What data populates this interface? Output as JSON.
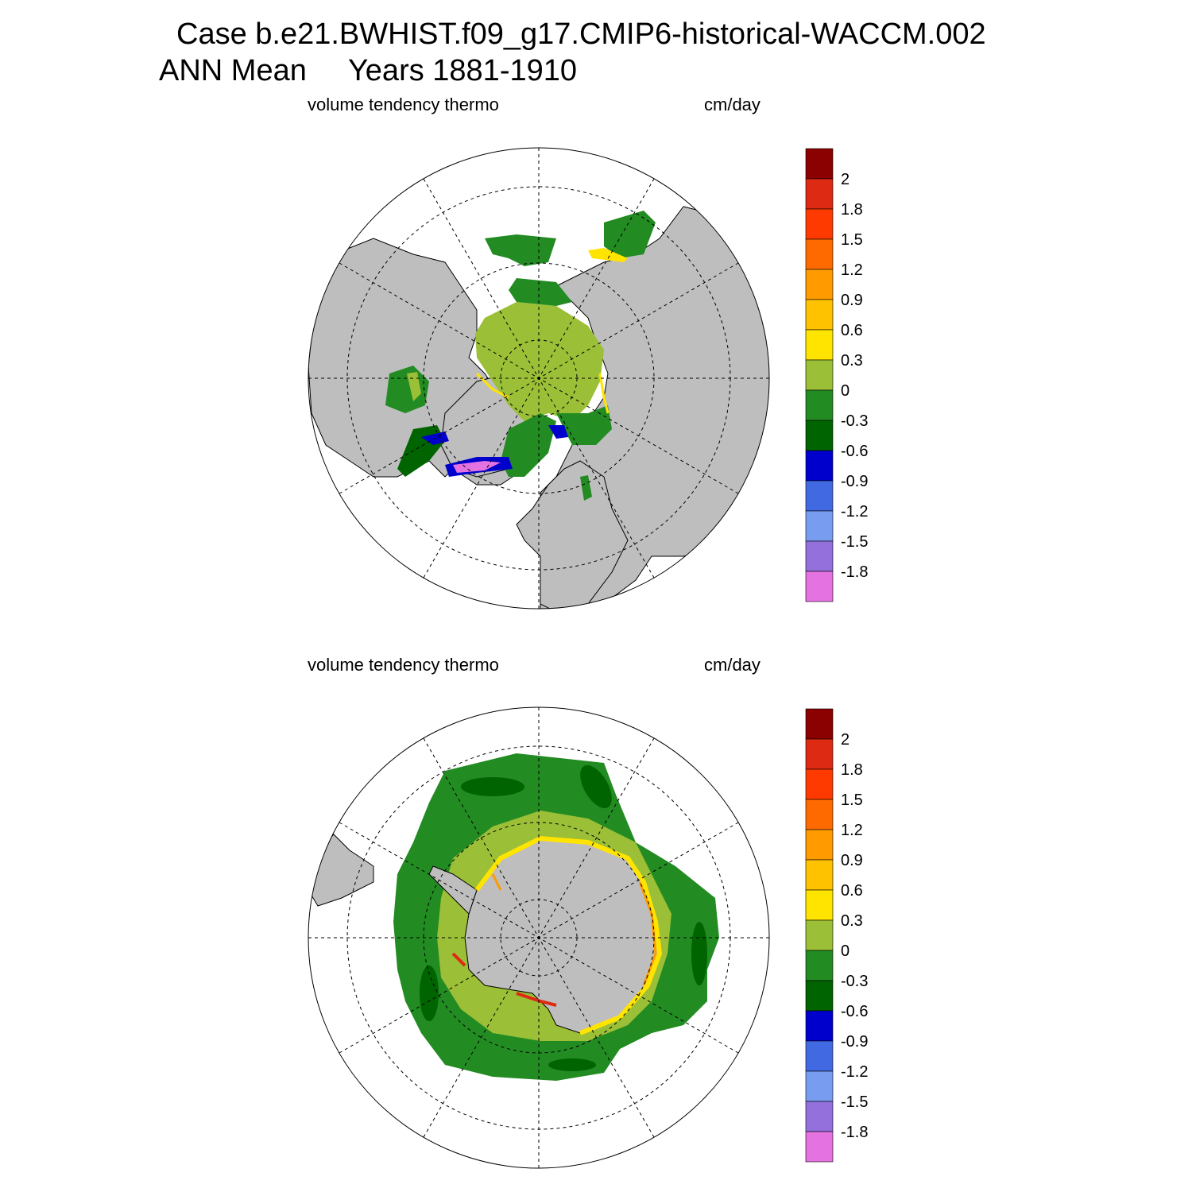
{
  "header": {
    "title_line1": "Case b.e21.BWHIST.f09_g17.CMIP6-historical-WACCM.002",
    "title_line2": "ANN Mean     Years 1881-1910"
  },
  "colors": {
    "land": "#bebebe",
    "ocean_open": "#ffffff",
    "coast": "#000000"
  },
  "colorbar": {
    "labels": [
      "2",
      "1.8",
      "1.5",
      "1.2",
      "0.9",
      "0.6",
      "0.3",
      "0",
      "-0.3",
      "-0.6",
      "-0.9",
      "-1.2",
      "-1.5",
      "-1.8"
    ],
    "colors": [
      "#8b0000",
      "#dd2a12",
      "#ff3a00",
      "#ff6a00",
      "#ff9a00",
      "#ffc200",
      "#ffe400",
      "#9bbf37",
      "#228b22",
      "#006400",
      "#0000cd",
      "#4169e1",
      "#789df0",
      "#9370db",
      "#e472e0"
    ]
  },
  "panels": [
    {
      "id": "north",
      "variable_label": "volume tendency thermo",
      "units_label": "cm/day",
      "hemisphere": "Northern Hemisphere polar stereographic"
    },
    {
      "id": "south",
      "variable_label": "volume tendency thermo",
      "units_label": "cm/day",
      "hemisphere": "Southern Hemisphere polar stereographic"
    }
  ]
}
